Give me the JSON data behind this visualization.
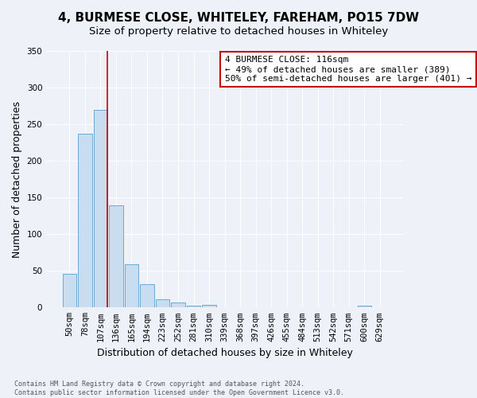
{
  "title": "4, BURMESE CLOSE, WHITELEY, FAREHAM, PO15 7DW",
  "subtitle": "Size of property relative to detached houses in Whiteley",
  "xlabel": "Distribution of detached houses by size in Whiteley",
  "ylabel": "Number of detached properties",
  "bin_labels": [
    "50sqm",
    "78sqm",
    "107sqm",
    "136sqm",
    "165sqm",
    "194sqm",
    "223sqm",
    "252sqm",
    "281sqm",
    "310sqm",
    "339sqm",
    "368sqm",
    "397sqm",
    "426sqm",
    "455sqm",
    "484sqm",
    "513sqm",
    "542sqm",
    "571sqm",
    "600sqm",
    "629sqm"
  ],
  "bar_values": [
    46,
    237,
    270,
    139,
    59,
    32,
    11,
    7,
    2,
    4,
    0,
    0,
    0,
    0,
    0,
    0,
    0,
    0,
    0,
    3,
    0
  ],
  "bar_color": "#c9ddf0",
  "bar_edge_color": "#6aaad4",
  "vline_x": 2.42,
  "vline_color": "#cc0000",
  "annotation_text": "4 BURMESE CLOSE: 116sqm\n← 49% of detached houses are smaller (389)\n50% of semi-detached houses are larger (401) →",
  "annotation_box_color": "#ffffff",
  "annotation_box_edge_color": "#cc0000",
  "ylim": [
    0,
    350
  ],
  "yticks": [
    0,
    50,
    100,
    150,
    200,
    250,
    300,
    350
  ],
  "footer": "Contains HM Land Registry data © Crown copyright and database right 2024.\nContains public sector information licensed under the Open Government Licence v3.0.",
  "title_fontsize": 11,
  "subtitle_fontsize": 9.5,
  "axis_label_fontsize": 9,
  "tick_fontsize": 7.5,
  "annotation_fontsize": 8,
  "footer_fontsize": 6,
  "background_color": "#eef2f8",
  "plot_background_color": "#eef2f8",
  "grid_color": "#ffffff"
}
